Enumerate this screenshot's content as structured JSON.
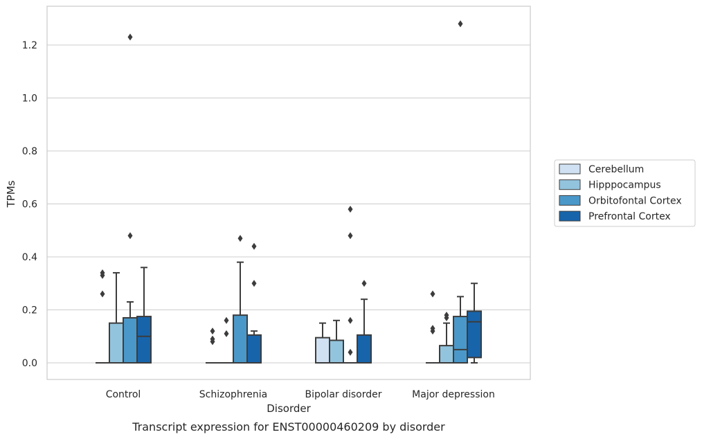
{
  "chart_data": {
    "type": "box",
    "caption": "Transcript expression for ENST00000460209 by disorder",
    "xlabel": "Disorder",
    "ylabel": "TPMs",
    "ylim": [
      -0.065,
      1.345
    ],
    "yticks": [
      0.0,
      0.2,
      0.4,
      0.6,
      0.8,
      1.0,
      1.2
    ],
    "ytick_labels": [
      "0.0",
      "0.2",
      "0.4",
      "0.6",
      "0.8",
      "1.0",
      "1.2"
    ],
    "grid": "horizontal",
    "legend_position": "right",
    "categories": [
      "Control",
      "Schizophrenia",
      "Bipolar disorder",
      "Major depression"
    ],
    "series": [
      {
        "name": "Cerebellum",
        "color": "#cfe1f2",
        "boxes": [
          {
            "q1": 0,
            "median": 0,
            "q3": 0,
            "whisker_low": 0,
            "whisker_high": 0,
            "outliers": [
              0.26,
              0.33,
              0.34
            ]
          },
          {
            "q1": 0,
            "median": 0,
            "q3": 0,
            "whisker_low": 0,
            "whisker_high": 0,
            "outliers": [
              0.08,
              0.09,
              0.12
            ]
          },
          {
            "q1": 0,
            "median": 0,
            "q3": 0.095,
            "whisker_low": 0,
            "whisker_high": 0.15,
            "outliers": []
          },
          {
            "q1": 0,
            "median": 0,
            "q3": 0,
            "whisker_low": 0,
            "whisker_high": 0,
            "outliers": [
              0.12,
              0.13,
              0.26
            ]
          }
        ]
      },
      {
        "name": "Hipppocampus",
        "color": "#93c4de",
        "boxes": [
          {
            "q1": 0,
            "median": 0,
            "q3": 0.15,
            "whisker_low": 0,
            "whisker_high": 0.34,
            "outliers": []
          },
          {
            "q1": 0,
            "median": 0,
            "q3": 0,
            "whisker_low": 0,
            "whisker_high": 0,
            "outliers": [
              0.11,
              0.16
            ]
          },
          {
            "q1": 0,
            "median": 0,
            "q3": 0.085,
            "whisker_low": 0,
            "whisker_high": 0.16,
            "outliers": []
          },
          {
            "q1": 0,
            "median": 0,
            "q3": 0.065,
            "whisker_low": 0,
            "whisker_high": 0.15,
            "outliers": [
              0.17,
              0.18
            ]
          }
        ]
      },
      {
        "name": "Orbitofontal Cortex",
        "color": "#4a98c9",
        "boxes": [
          {
            "q1": 0,
            "median": 0,
            "q3": 0.17,
            "whisker_low": 0,
            "whisker_high": 0.23,
            "outliers": [
              0.48,
              1.23
            ]
          },
          {
            "q1": 0,
            "median": 0,
            "q3": 0.18,
            "whisker_low": 0,
            "whisker_high": 0.38,
            "outliers": [
              0.47
            ]
          },
          {
            "q1": 0,
            "median": 0,
            "q3": 0,
            "whisker_low": 0,
            "whisker_high": 0,
            "outliers": [
              0.04,
              0.16,
              0.48,
              0.58
            ]
          },
          {
            "q1": 0,
            "median": 0.05,
            "q3": 0.175,
            "whisker_low": 0,
            "whisker_high": 0.25,
            "outliers": [
              1.28
            ]
          }
        ]
      },
      {
        "name": "Prefrontal Cortex",
        "color": "#1764ab",
        "boxes": [
          {
            "q1": 0,
            "median": 0.1,
            "q3": 0.175,
            "whisker_low": 0,
            "whisker_high": 0.36,
            "outliers": []
          },
          {
            "q1": 0,
            "median": 0,
            "q3": 0.105,
            "whisker_low": 0,
            "whisker_high": 0.12,
            "outliers": [
              0.3,
              0.44
            ]
          },
          {
            "q1": 0,
            "median": 0,
            "q3": 0.105,
            "whisker_low": 0,
            "whisker_high": 0.24,
            "outliers": [
              0.3
            ]
          },
          {
            "q1": 0.02,
            "median": 0.155,
            "q3": 0.195,
            "whisker_low": 0,
            "whisker_high": 0.3,
            "outliers": []
          }
        ]
      }
    ]
  }
}
